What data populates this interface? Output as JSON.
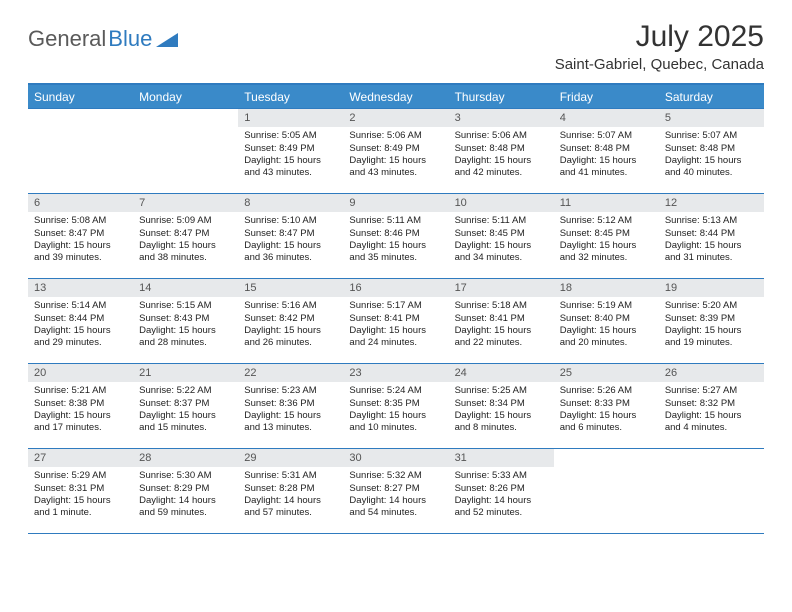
{
  "logo": {
    "text1": "General",
    "text2": "Blue"
  },
  "title": "July 2025",
  "location": "Saint-Gabriel, Quebec, Canada",
  "day_headers": [
    "Sunday",
    "Monday",
    "Tuesday",
    "Wednesday",
    "Thursday",
    "Friday",
    "Saturday"
  ],
  "colors": {
    "header_bar": "#3a8ac9",
    "accent_line": "#2f7bbf",
    "daynum_bg": "#e7e9eb"
  },
  "weeks": [
    [
      null,
      null,
      {
        "n": "1",
        "sr": "Sunrise: 5:05 AM",
        "ss": "Sunset: 8:49 PM",
        "dl": "Daylight: 15 hours and 43 minutes."
      },
      {
        "n": "2",
        "sr": "Sunrise: 5:06 AM",
        "ss": "Sunset: 8:49 PM",
        "dl": "Daylight: 15 hours and 43 minutes."
      },
      {
        "n": "3",
        "sr": "Sunrise: 5:06 AM",
        "ss": "Sunset: 8:48 PM",
        "dl": "Daylight: 15 hours and 42 minutes."
      },
      {
        "n": "4",
        "sr": "Sunrise: 5:07 AM",
        "ss": "Sunset: 8:48 PM",
        "dl": "Daylight: 15 hours and 41 minutes."
      },
      {
        "n": "5",
        "sr": "Sunrise: 5:07 AM",
        "ss": "Sunset: 8:48 PM",
        "dl": "Daylight: 15 hours and 40 minutes."
      }
    ],
    [
      {
        "n": "6",
        "sr": "Sunrise: 5:08 AM",
        "ss": "Sunset: 8:47 PM",
        "dl": "Daylight: 15 hours and 39 minutes."
      },
      {
        "n": "7",
        "sr": "Sunrise: 5:09 AM",
        "ss": "Sunset: 8:47 PM",
        "dl": "Daylight: 15 hours and 38 minutes."
      },
      {
        "n": "8",
        "sr": "Sunrise: 5:10 AM",
        "ss": "Sunset: 8:47 PM",
        "dl": "Daylight: 15 hours and 36 minutes."
      },
      {
        "n": "9",
        "sr": "Sunrise: 5:11 AM",
        "ss": "Sunset: 8:46 PM",
        "dl": "Daylight: 15 hours and 35 minutes."
      },
      {
        "n": "10",
        "sr": "Sunrise: 5:11 AM",
        "ss": "Sunset: 8:45 PM",
        "dl": "Daylight: 15 hours and 34 minutes."
      },
      {
        "n": "11",
        "sr": "Sunrise: 5:12 AM",
        "ss": "Sunset: 8:45 PM",
        "dl": "Daylight: 15 hours and 32 minutes."
      },
      {
        "n": "12",
        "sr": "Sunrise: 5:13 AM",
        "ss": "Sunset: 8:44 PM",
        "dl": "Daylight: 15 hours and 31 minutes."
      }
    ],
    [
      {
        "n": "13",
        "sr": "Sunrise: 5:14 AM",
        "ss": "Sunset: 8:44 PM",
        "dl": "Daylight: 15 hours and 29 minutes."
      },
      {
        "n": "14",
        "sr": "Sunrise: 5:15 AM",
        "ss": "Sunset: 8:43 PM",
        "dl": "Daylight: 15 hours and 28 minutes."
      },
      {
        "n": "15",
        "sr": "Sunrise: 5:16 AM",
        "ss": "Sunset: 8:42 PM",
        "dl": "Daylight: 15 hours and 26 minutes."
      },
      {
        "n": "16",
        "sr": "Sunrise: 5:17 AM",
        "ss": "Sunset: 8:41 PM",
        "dl": "Daylight: 15 hours and 24 minutes."
      },
      {
        "n": "17",
        "sr": "Sunrise: 5:18 AM",
        "ss": "Sunset: 8:41 PM",
        "dl": "Daylight: 15 hours and 22 minutes."
      },
      {
        "n": "18",
        "sr": "Sunrise: 5:19 AM",
        "ss": "Sunset: 8:40 PM",
        "dl": "Daylight: 15 hours and 20 minutes."
      },
      {
        "n": "19",
        "sr": "Sunrise: 5:20 AM",
        "ss": "Sunset: 8:39 PM",
        "dl": "Daylight: 15 hours and 19 minutes."
      }
    ],
    [
      {
        "n": "20",
        "sr": "Sunrise: 5:21 AM",
        "ss": "Sunset: 8:38 PM",
        "dl": "Daylight: 15 hours and 17 minutes."
      },
      {
        "n": "21",
        "sr": "Sunrise: 5:22 AM",
        "ss": "Sunset: 8:37 PM",
        "dl": "Daylight: 15 hours and 15 minutes."
      },
      {
        "n": "22",
        "sr": "Sunrise: 5:23 AM",
        "ss": "Sunset: 8:36 PM",
        "dl": "Daylight: 15 hours and 13 minutes."
      },
      {
        "n": "23",
        "sr": "Sunrise: 5:24 AM",
        "ss": "Sunset: 8:35 PM",
        "dl": "Daylight: 15 hours and 10 minutes."
      },
      {
        "n": "24",
        "sr": "Sunrise: 5:25 AM",
        "ss": "Sunset: 8:34 PM",
        "dl": "Daylight: 15 hours and 8 minutes."
      },
      {
        "n": "25",
        "sr": "Sunrise: 5:26 AM",
        "ss": "Sunset: 8:33 PM",
        "dl": "Daylight: 15 hours and 6 minutes."
      },
      {
        "n": "26",
        "sr": "Sunrise: 5:27 AM",
        "ss": "Sunset: 8:32 PM",
        "dl": "Daylight: 15 hours and 4 minutes."
      }
    ],
    [
      {
        "n": "27",
        "sr": "Sunrise: 5:29 AM",
        "ss": "Sunset: 8:31 PM",
        "dl": "Daylight: 15 hours and 1 minute."
      },
      {
        "n": "28",
        "sr": "Sunrise: 5:30 AM",
        "ss": "Sunset: 8:29 PM",
        "dl": "Daylight: 14 hours and 59 minutes."
      },
      {
        "n": "29",
        "sr": "Sunrise: 5:31 AM",
        "ss": "Sunset: 8:28 PM",
        "dl": "Daylight: 14 hours and 57 minutes."
      },
      {
        "n": "30",
        "sr": "Sunrise: 5:32 AM",
        "ss": "Sunset: 8:27 PM",
        "dl": "Daylight: 14 hours and 54 minutes."
      },
      {
        "n": "31",
        "sr": "Sunrise: 5:33 AM",
        "ss": "Sunset: 8:26 PM",
        "dl": "Daylight: 14 hours and 52 minutes."
      },
      null,
      null
    ]
  ]
}
